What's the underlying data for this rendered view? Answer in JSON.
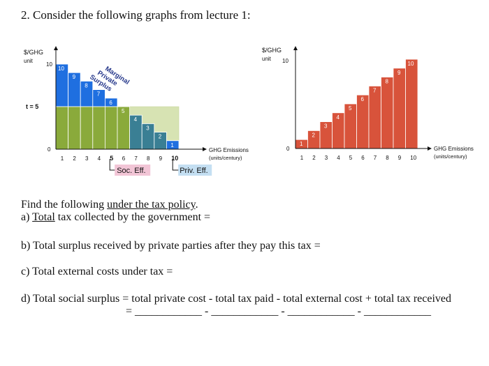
{
  "heading": "2. Consider the following graphs from lecture 1:",
  "chart_data": [
    {
      "type": "bar",
      "title": "",
      "ylabel": "$/GHG unit",
      "xlabel": "GHG Emissions (units/century)",
      "y_ticks": [
        "0",
        "t = 5",
        "10"
      ],
      "categories": [
        "1",
        "2",
        "3",
        "4",
        "5",
        "6",
        "7",
        "8",
        "9",
        "10"
      ],
      "series": [
        {
          "name": "Marginal Private Surplus",
          "values": [
            10,
            9,
            8,
            7,
            6,
            5,
            4,
            3,
            2,
            1
          ]
        }
      ],
      "bar_labels": [
        "10",
        "9",
        "8",
        "7",
        "6",
        "5",
        "4",
        "3",
        "2",
        "1"
      ],
      "tax_line": 5,
      "annotations": [
        {
          "text": "Marginal Private Surplus"
        },
        {
          "text": "Soc. Eff.",
          "at": 5
        },
        {
          "text": "Priv. Eff.",
          "at": 10
        }
      ]
    },
    {
      "type": "bar",
      "title": "",
      "ylabel": "$/GHG unit",
      "xlabel": "GHG Emissions (units/century)",
      "y_ticks": [
        "0",
        "10"
      ],
      "categories": [
        "1",
        "2",
        "3",
        "4",
        "5",
        "6",
        "7",
        "8",
        "9",
        "10"
      ],
      "series": [
        {
          "name": "",
          "values": [
            1,
            2,
            3,
            4,
            5,
            6,
            7,
            8,
            9,
            10
          ]
        }
      ],
      "bar_labels": [
        "1",
        "2",
        "3",
        "4",
        "5",
        "6",
        "7",
        "8",
        "9",
        "10"
      ]
    }
  ],
  "colors": {
    "blue": "#1f6fe0",
    "green": "#8aaa3b",
    "teal": "#3a7f94",
    "pale_green": "#d7e3b3",
    "red": "#d8533b",
    "soc_eff_bg": "#f2c5d6",
    "priv_eff_bg": "#c4dff2",
    "surplus_text": "#24368a"
  },
  "text": {
    "find_prefix": "Find the following ",
    "find_underlined": "under the tax policy",
    "find_suffix": ".",
    "a_prefix": "a) ",
    "a_underlined": "Total",
    "a_suffix": " tax collected by the government =",
    "b": "b) Total surplus received by private parties after they pay this tax =",
    "c": "c) Total external costs under tax =",
    "d": "d) Total social surplus = total private cost - total tax paid - total external cost + total tax received",
    "blanks": "= ____________  -  ____________  -  ____________  -  ____________"
  }
}
